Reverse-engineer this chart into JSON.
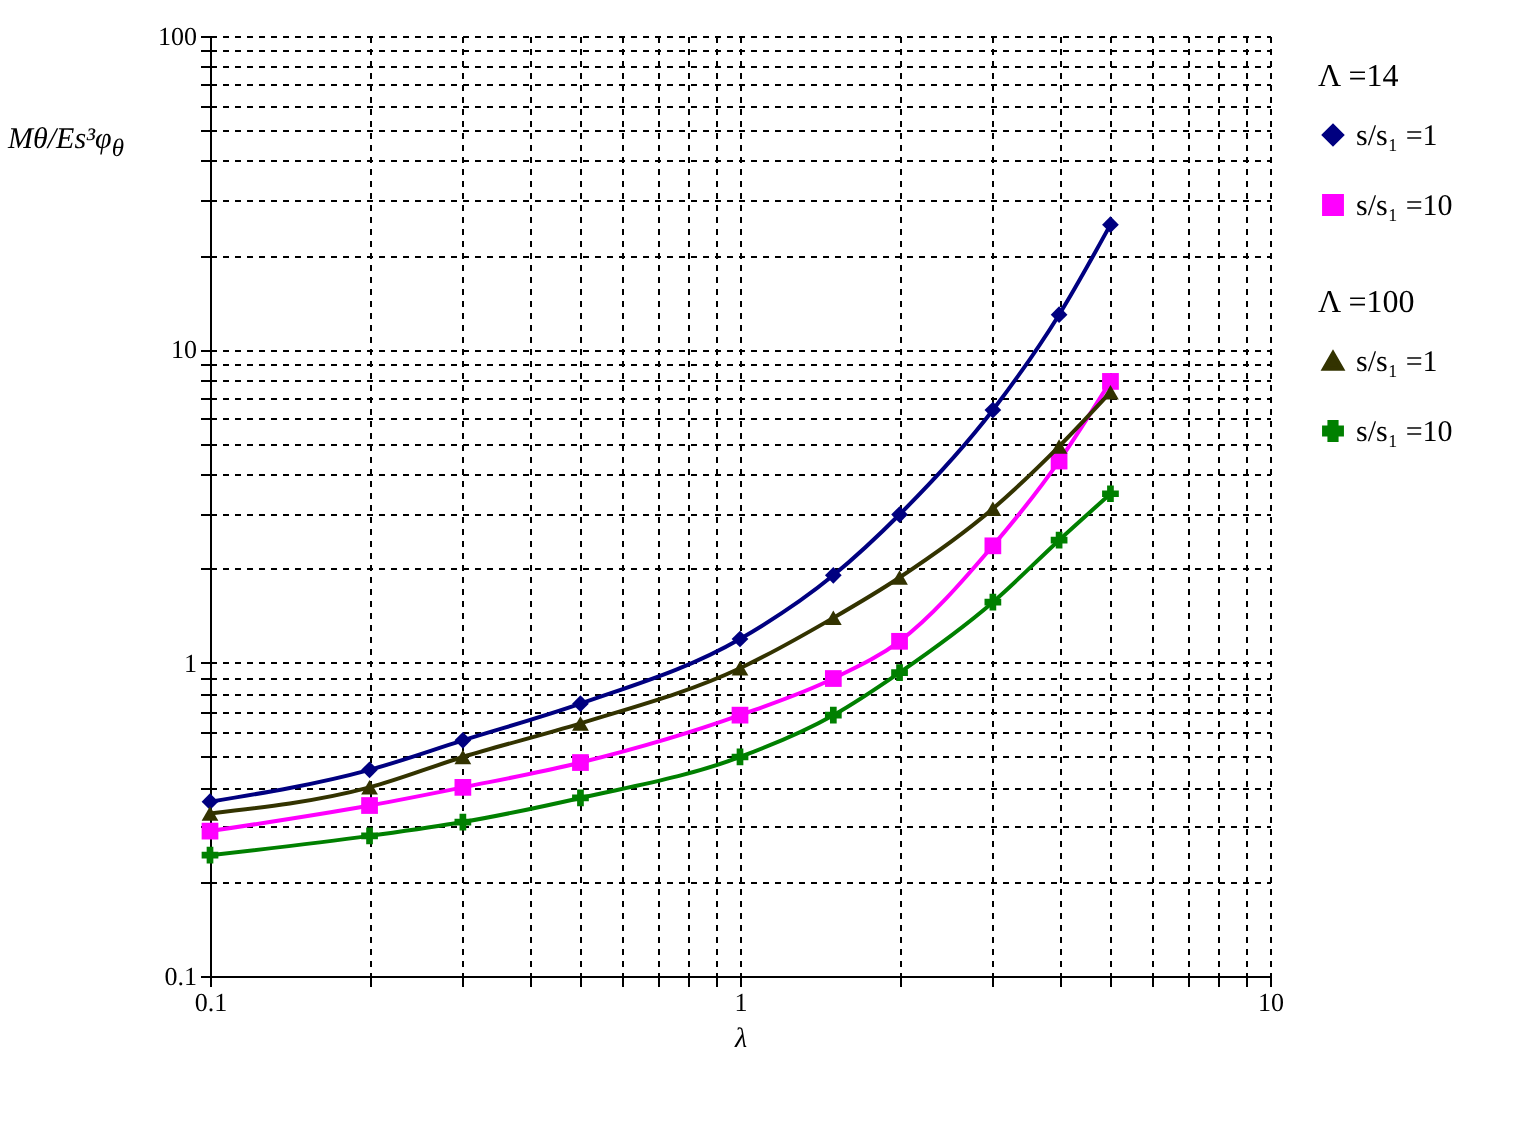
{
  "chart_data": {
    "type": "line",
    "xlabel": "λ",
    "ylabel": "Mθ/Es³φ$_{θ}$",
    "annotations": [
      "Λ =14",
      "Λ =100"
    ],
    "log": "xy",
    "grid": true,
    "legend": "right",
    "line_style": "solid",
    "x": [
      0.1,
      0.2,
      0.3,
      0.5,
      1,
      1.5,
      2,
      3,
      4,
      5
    ],
    "xlim": [
      0.1,
      10
    ],
    "xticks": [
      0.1,
      {
        "value": 0.2,
        "label": null
      },
      {
        "value": 0.3,
        "label": null
      },
      {
        "value": 0.4,
        "label": null
      },
      {
        "value": 0.5,
        "label": null
      },
      {
        "value": 0.6,
        "label": null
      },
      {
        "value": 0.7,
        "label": null
      },
      {
        "value": 0.8,
        "label": null
      },
      {
        "value": 0.9,
        "label": null
      },
      1,
      {
        "value": 2,
        "label": null
      },
      {
        "value": 3,
        "label": null
      },
      {
        "value": 4,
        "label": null
      },
      {
        "value": 5,
        "label": null
      },
      {
        "value": 6,
        "label": null
      },
      {
        "value": 7,
        "label": null
      },
      {
        "value": 8,
        "label": null
      },
      {
        "value": 9,
        "label": null
      },
      10
    ],
    "ylim": [
      0.1,
      100
    ],
    "yticks": [
      0.1,
      {
        "value": 0.2,
        "label": null
      },
      {
        "value": 0.3,
        "label": null
      },
      {
        "value": 0.4,
        "label": null
      },
      {
        "value": 0.5,
        "label": null
      },
      {
        "value": 0.6,
        "label": null
      },
      {
        "value": 0.7,
        "label": null
      },
      {
        "value": 0.8,
        "label": null
      },
      {
        "value": 0.9,
        "label": null
      },
      1,
      {
        "value": 2,
        "label": null
      },
      {
        "value": 3,
        "label": null
      },
      {
        "value": 4,
        "label": null
      },
      {
        "value": 5,
        "label": null
      },
      {
        "value": 6,
        "label": null
      },
      {
        "value": 7,
        "label": null
      },
      {
        "value": 8,
        "label": null
      },
      {
        "value": 9,
        "label": null
      },
      10,
      {
        "value": 20,
        "label": null
      },
      {
        "value": 30,
        "label": null
      },
      {
        "value": 40,
        "label": null
      },
      {
        "value": 50,
        "label": null
      },
      {
        "value": 60,
        "label": null
      },
      {
        "value": 70,
        "label": null
      },
      {
        "value": 80,
        "label": null
      },
      {
        "value": 90,
        "label": null
      },
      100
    ],
    "series": [
      {
        "name": "s/s₁ =1",
        "color": "#000080",
        "marker": "diamond",
        "values": [
          0.36,
          0.455,
          0.565,
          0.74,
          1.19,
          1.9,
          2.97,
          6.4,
          12.9,
          25
        ]
      },
      {
        "name": "s/s₁ =10",
        "color": "#ff00ff",
        "marker": "square",
        "values": [
          0.29,
          0.35,
          0.4,
          0.48,
          0.68,
          0.89,
          1.17,
          2.36,
          4.4,
          7.9
        ]
      },
      {
        "name": "s/s₁ =1",
        "color": "#333300",
        "marker": "triangle",
        "values": [
          0.33,
          0.4,
          0.5,
          0.64,
          0.96,
          1.39,
          1.87,
          3.1,
          4.9,
          7.3
        ]
      },
      {
        "name": "s/s₁ =10",
        "color": "#008000",
        "marker": "cross",
        "values": [
          0.243,
          0.28,
          0.31,
          0.37,
          0.5,
          0.68,
          0.93,
          1.56,
          2.46,
          3.46
        ]
      }
    ]
  }
}
